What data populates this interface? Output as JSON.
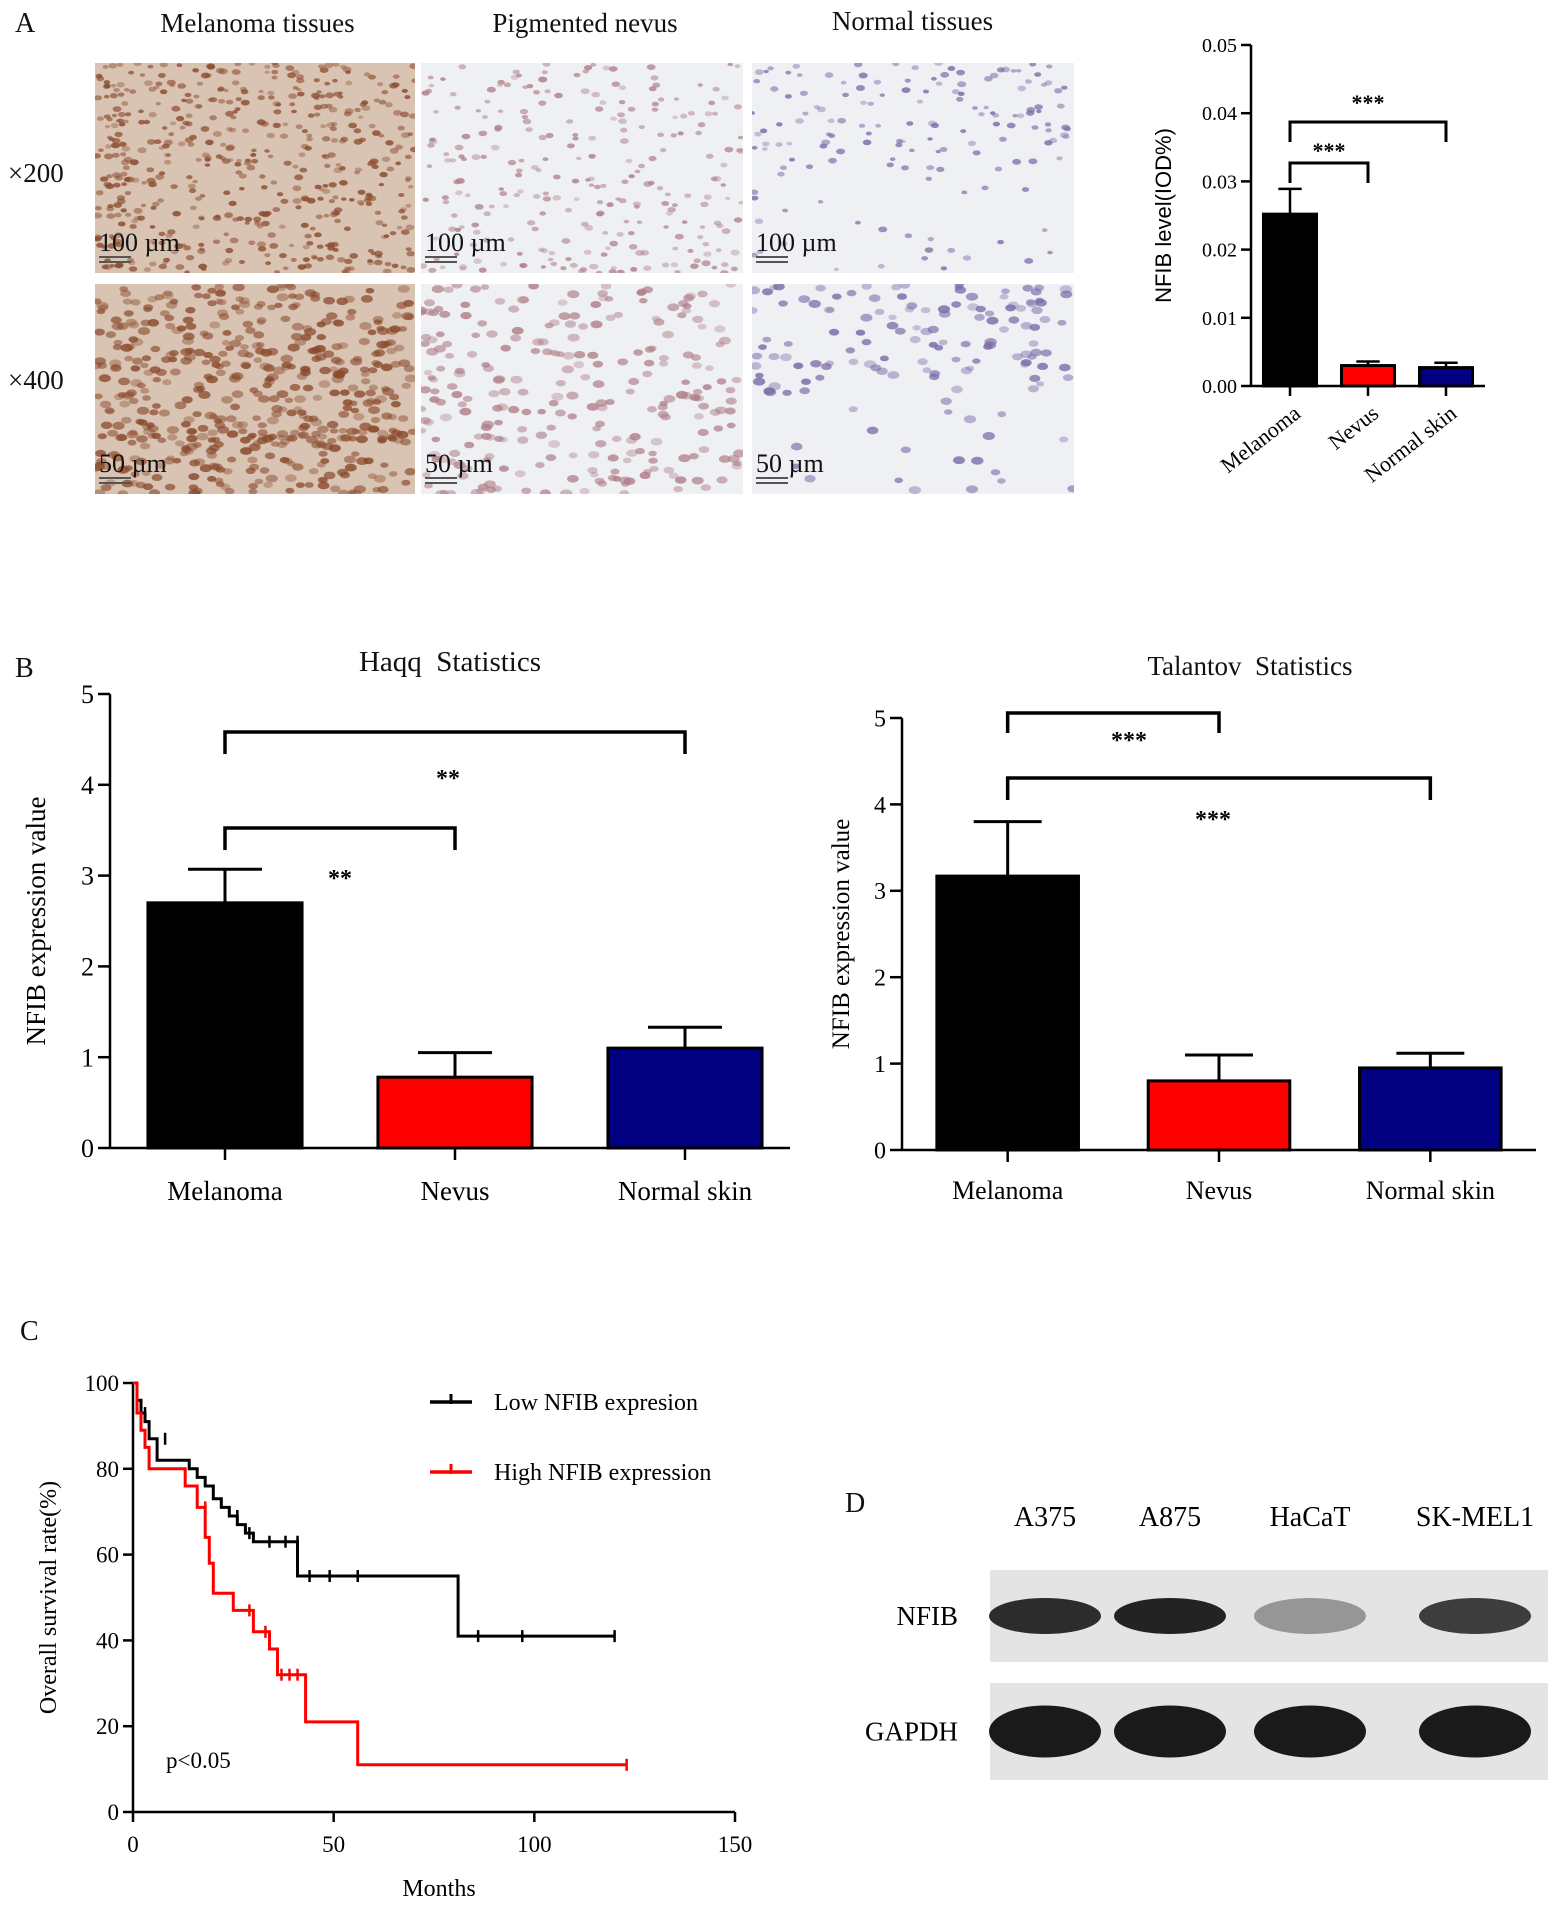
{
  "figure": {
    "panel_letters": [
      "A",
      "B",
      "C",
      "D"
    ]
  },
  "histology": {
    "columns": [
      "Melanoma tissues",
      "Pigmented nevus",
      "Normal tissues"
    ],
    "rows": [
      {
        "magnification": "×200",
        "scale_bar": "100 µm"
      },
      {
        "magnification": "×400",
        "scale_bar": "50 µm"
      }
    ],
    "colors": {
      "melanoma_stain": "#8a4a2c",
      "nevus_stain": "#b07f88",
      "normal_stain": "#7b6aa8",
      "background": "#eef0f3"
    }
  },
  "western_blot": {
    "cell_lines": [
      "A375",
      "A875",
      "HaCaT",
      "SK-MEL1"
    ],
    "proteins": [
      "NFIB",
      "GAPDH"
    ],
    "band_intensity": {
      "NFIB": [
        0.9,
        0.95,
        0.3,
        0.8
      ],
      "GAPDH": [
        1,
        1,
        1,
        1
      ]
    }
  },
  "chart_data": [
    {
      "id": "iod",
      "type": "bar",
      "categories": [
        "Melanoma",
        "Nevus",
        "Normal skin"
      ],
      "values": [
        0.0252,
        0.003,
        0.0027
      ],
      "errors": [
        0.0037,
        0.0006,
        0.0007
      ],
      "colors": [
        "#000000",
        "#ff0000",
        "#000080"
      ],
      "title": "",
      "xlabel": "",
      "ylabel": "NFIB level(IOD%)",
      "ylim": [
        0,
        0.05
      ],
      "yticks": [
        "0.00",
        "0.01",
        "0.02",
        "0.03",
        "0.04",
        "0.05"
      ],
      "significance": [
        {
          "from": 0,
          "to": 1,
          "label": "***"
        },
        {
          "from": 0,
          "to": 2,
          "label": "***"
        }
      ]
    },
    {
      "id": "haqq",
      "type": "bar",
      "categories": [
        "Melanoma",
        "Nevus",
        "Normal skin"
      ],
      "values": [
        2.7,
        0.78,
        1.1
      ],
      "errors": [
        0.37,
        0.27,
        0.23
      ],
      "colors": [
        "#000000",
        "#ff0000",
        "#000080"
      ],
      "title": "Haqq  Statistics",
      "xlabel": "",
      "ylabel": "NFIB expression value",
      "ylim": [
        0,
        5
      ],
      "yticks": [
        "0",
        "1",
        "2",
        "3",
        "4",
        "5"
      ],
      "significance": [
        {
          "from": 0,
          "to": 1,
          "label": "**"
        },
        {
          "from": 0,
          "to": 2,
          "label": "**"
        }
      ]
    },
    {
      "id": "talantov",
      "type": "bar",
      "categories": [
        "Melanoma",
        "Nevus",
        "Normal skin"
      ],
      "values": [
        3.17,
        0.8,
        0.95
      ],
      "errors": [
        0.63,
        0.3,
        0.17
      ],
      "colors": [
        "#000000",
        "#ff0000",
        "#000080"
      ],
      "title": "Talantov  Statistics",
      "xlabel": "",
      "ylabel": "NFIB expression value",
      "ylim": [
        0,
        5
      ],
      "yticks": [
        "0",
        "1",
        "2",
        "3",
        "4",
        "5"
      ],
      "significance": [
        {
          "from": 0,
          "to": 1,
          "label": "***"
        },
        {
          "from": 0,
          "to": 2,
          "label": "***"
        }
      ]
    },
    {
      "id": "survival",
      "type": "line",
      "title": "",
      "xlabel": "Months",
      "ylabel": "Overall survival rate(%)",
      "xlim": [
        0,
        150
      ],
      "ylim": [
        0,
        100
      ],
      "xticks": [
        "0",
        "50",
        "100",
        "150"
      ],
      "yticks": [
        "0",
        "20",
        "40",
        "60",
        "80",
        "100"
      ],
      "annotation": "p<0.05",
      "series": [
        {
          "name": "Low NFIB expresion",
          "color": "#000000",
          "x": [
            0,
            1,
            1,
            2,
            2,
            3,
            3,
            4,
            4,
            6,
            6,
            14,
            14,
            16,
            16,
            18,
            18,
            20,
            20,
            22,
            22,
            24,
            24,
            26,
            26,
            28,
            28,
            30,
            30,
            41,
            41,
            81,
            81,
            120
          ],
          "y": [
            100,
            100,
            96,
            96,
            93,
            93,
            91,
            91,
            87,
            87,
            82,
            82,
            80,
            80,
            78,
            78,
            76,
            76,
            73,
            73,
            71,
            71,
            69,
            69,
            67,
            67,
            65,
            65,
            63,
            63,
            55,
            55,
            41,
            41
          ],
          "censored": [
            [
              3,
              93
            ],
            [
              8,
              87
            ],
            [
              26,
              69
            ],
            [
              29,
              65
            ],
            [
              34,
              63
            ],
            [
              38,
              63
            ],
            [
              41,
              63
            ],
            [
              44,
              55
            ],
            [
              49,
              55
            ],
            [
              56,
              55
            ],
            [
              86,
              41
            ],
            [
              97,
              41
            ],
            [
              120,
              41
            ]
          ]
        },
        {
          "name": "High NFIB expression",
          "color": "#ff0000",
          "x": [
            0,
            1,
            1,
            2,
            2,
            3,
            3,
            4,
            4,
            13,
            13,
            16,
            16,
            18,
            18,
            19,
            19,
            20,
            20,
            21,
            21,
            25,
            25,
            26,
            26,
            30,
            30,
            34,
            34,
            36,
            36,
            43,
            43,
            56,
            56,
            123
          ],
          "y": [
            100,
            100,
            93,
            93,
            89,
            89,
            85,
            85,
            80,
            80,
            76,
            76,
            71,
            71,
            64,
            64,
            58,
            58,
            51,
            51,
            51,
            51,
            47,
            47,
            47,
            47,
            42,
            42,
            38,
            38,
            32,
            32,
            21,
            21,
            11,
            11
          ],
          "censored": [
            [
              18,
              71
            ],
            [
              29,
              47
            ],
            [
              33,
              42
            ],
            [
              37,
              32
            ],
            [
              39,
              32
            ],
            [
              41,
              32
            ],
            [
              123,
              11
            ]
          ]
        }
      ]
    }
  ]
}
